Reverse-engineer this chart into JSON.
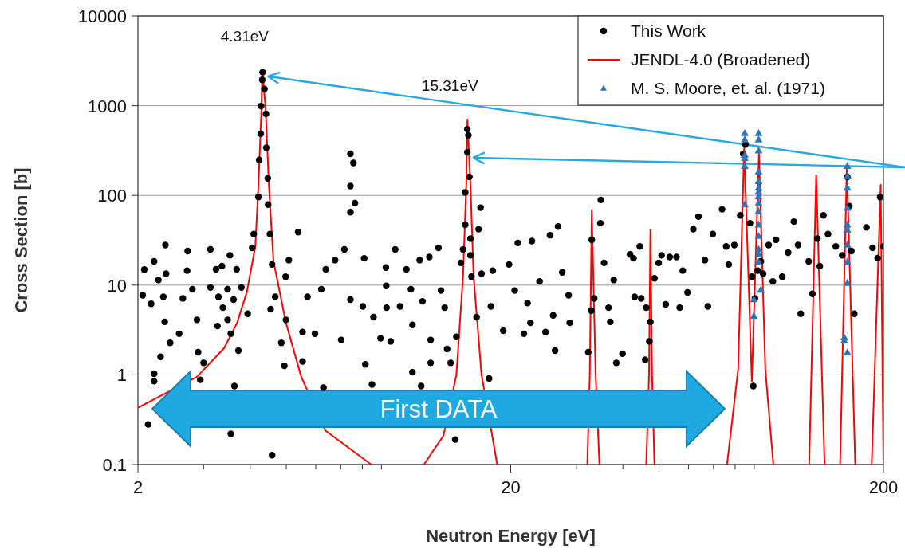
{
  "chart_data": {
    "type": "scatter",
    "xlabel": "Neutron Energy [eV]",
    "ylabel": "Cross Section [b]",
    "log": "xy",
    "grid": "y",
    "legend": "top right",
    "xlim": [
      2,
      200
    ],
    "ylim": [
      0.1,
      10000
    ],
    "xticks": [
      2,
      {
        "value": 3,
        "label": null
      },
      {
        "value": 4,
        "label": null
      },
      {
        "value": 5,
        "label": null
      },
      {
        "value": 6,
        "label": null
      },
      {
        "value": 7,
        "label": null
      },
      {
        "value": 8,
        "label": null
      },
      {
        "value": 9,
        "label": null
      },
      20,
      {
        "value": 30,
        "label": null
      },
      {
        "value": 40,
        "label": null
      },
      {
        "value": 50,
        "label": null
      },
      {
        "value": 60,
        "label": null
      },
      {
        "value": 70,
        "label": null
      },
      {
        "value": 80,
        "label": null
      },
      {
        "value": 90,
        "label": null
      },
      200
    ],
    "yticks": [
      0.1,
      1,
      10,
      100,
      1000,
      10000
    ],
    "annotations": [
      {
        "text": "4.31eV",
        "x": 4.31,
        "y": 2500
      },
      {
        "text": "15.31eV",
        "x": 15.31,
        "y": 700
      },
      "First DATA"
    ],
    "series": [
      {
        "name": "This Work",
        "marker": "circle",
        "color": "#000000",
        "x": [
          2.06,
          2.08,
          2.17,
          2.21,
          2.27,
          2.3,
          2.34,
          2.37,
          2.38,
          2.36,
          2.44,
          2.21,
          2.21,
          2.13,
          2.58,
          2.64,
          2.72,
          2.71,
          2.8,
          2.88,
          2.9,
          3.0,
          2.94,
          3.13,
          3.13,
          3.24,
          3.27,
          3.29,
          3.36,
          3.38,
          3.48,
          3.48,
          3.53,
          3.55,
          3.61,
          3.68,
          3.72,
          3.79,
          3.63,
          3.55,
          3.94,
          4.05,
          4.09,
          4.21,
          4.23,
          4.27,
          4.28,
          4.31,
          4.32,
          4.37,
          4.41,
          4.42,
          4.46,
          4.47,
          4.52,
          4.58,
          4.67,
          4.54,
          4.58,
          4.85,
          4.98,
          4.99,
          4.94,
          5.08,
          5.38,
          5.53,
          5.53,
          5.7,
          5.97,
          6.21,
          6.29,
          6.38,
          6.76,
          7.02,
          7.16,
          7.43,
          7.43,
          7.57,
          7.43,
          7.64,
          7.43,
          8.09,
          8.02,
          8.15,
          8.49,
          8.57,
          8.95,
          9.25,
          9.29,
          9.27,
          9.53,
          9.8,
          10.1,
          10.5,
          10.8,
          10.9,
          10.9,
          11.4,
          11.5,
          11.6,
          12.1,
          12.2,
          12.2,
          12.8,
          13.0,
          13.3,
          13.5,
          13.8,
          14.2,
          14.3,
          14.7,
          14.9,
          15.1,
          15.1,
          15.5,
          15.3,
          15.4,
          15.3,
          15.6,
          15.6,
          15.7,
          16.2,
          16.6,
          16.4,
          16.7,
          17.5,
          17.7,
          17.9,
          19.1,
          19.8,
          20.5,
          20.9,
          21.7,
          22.2,
          22.6,
          22.8,
          23.9,
          24.8,
          25.5,
          26.0,
          26.3,
          26.8,
          27.5,
          28.6,
          28.8,
          32.3,
          32.9,
          33.0,
          33.5,
          34.9,
          34.8,
          35.6,
          36.6,
          37.0,
          37.8,
          38.4,
          39.9,
          41.8,
          43.0,
          42.7,
          44.4,
          44.8,
          46.2,
          47.4,
          47.1,
          45.9,
          48.6,
          49.9,
          50.8,
          52.1,
          53.4,
          55.7,
          56.8,
          57.9,
          59.6,
          61.8,
          63.8,
          66.4,
          67.6,
          69.7,
          73.8,
          75.7,
          76.9,
          79.6,
          82.6,
          84.1,
          85.3,
          87.7,
          88.7,
          89.5,
          90.4,
          92.0,
          93.8,
          95.1,
          98.4,
          101,
          103,
          107,
          111,
          115,
          118,
          120,
          126,
          129,
          133,
          135,
          138,
          142,
          149,
          155,
          160,
          162,
          164,
          167,
          180,
          187,
          193,
          196,
          200
        ],
        "values": [
          7.7,
          14.9,
          6.2,
          18.4,
          11.4,
          1.59,
          7.4,
          28,
          13.4,
          3.9,
          2.27,
          1.03,
          0.85,
          0.28,
          2.87,
          7.1,
          24,
          14.5,
          9.0,
          4.1,
          1.79,
          1.36,
          0.88,
          25,
          9.4,
          15,
          3.5,
          7.4,
          16.3,
          5.6,
          9.0,
          4.1,
          21.5,
          2.87,
          6.9,
          15,
          1.86,
          9.4,
          0.75,
          0.22,
          4.8,
          26,
          37,
          96,
          248,
          486,
          990,
          1940,
          2360,
          1530,
          810,
          340,
          155,
          79,
          37,
          17,
          7.4,
          5.4,
          0.127,
          2.27,
          12.4,
          4.1,
          1.26,
          19,
          39,
          3.0,
          1.41,
          7.4,
          2.87,
          9.0,
          0.72,
          15,
          19,
          2.45,
          25,
          6.9,
          291,
          230,
          127,
          82,
          65,
          19.9,
          5.8,
          1.31,
          0.78,
          4.4,
          2.55,
          15.7,
          5.6,
          9.8,
          2.36,
          25,
          5.8,
          15,
          9.0,
          3.6,
          1.07,
          19,
          0.75,
          6.6,
          20.6,
          1.36,
          2.45,
          26,
          8.7,
          5.6,
          1.94,
          1.36,
          0.19,
          2.65,
          17.7,
          25,
          47,
          108,
          161,
          303,
          468,
          547,
          33,
          21.5,
          12.4,
          4.4,
          73,
          42,
          13.4,
          0.91,
          5.8,
          14.5,
          3.1,
          17,
          8.7,
          29.5,
          2.87,
          6.3,
          3.8,
          31,
          11,
          3.0,
          36,
          4.6,
          1.86,
          45,
          13.9,
          7.7,
          3.8,
          1.79,
          5.2,
          32,
          7.1,
          89,
          49,
          17.7,
          5.6,
          3.9,
          11.4,
          1.36,
          1.72,
          22,
          7.4,
          19.9,
          27,
          7.1,
          5.6,
          3.9,
          2.36,
          1.47,
          11.9,
          17.7,
          21.5,
          6.1,
          20.6,
          20.6,
          5.6,
          14.5,
          8.3,
          42,
          58,
          19,
          5.8,
          37,
          70,
          27,
          17,
          28,
          60,
          291,
          369,
          49,
          12.4,
          0.75,
          7.1,
          14.5,
          18.4,
          13.4,
          28,
          11,
          32,
          12.4,
          23,
          51,
          28,
          4.8,
          18.4,
          8.0,
          33,
          16.3,
          60,
          37,
          27,
          21.5,
          161,
          76,
          24,
          4.8,
          44,
          26,
          20,
          96,
          27
        ]
      },
      {
        "name": "JENDL-4.0 (Broadened)",
        "type": "line",
        "line_style": "solid",
        "color": "#ff0000",
        "x": [
          2,
          2.88,
          3.41,
          3.69,
          3.92,
          4.13,
          4.21,
          4.29,
          4.31,
          4.4,
          4.49,
          4.62,
          4.99,
          5.49,
          6.36,
          8.45,
          10,
          11.7,
          13.2,
          14.3,
          14.9,
          15.2,
          15.31,
          15.6,
          15.9,
          16.7,
          18.4,
          25,
          32.1,
          32.6,
          33.0,
          33.8,
          34.6,
          40,
          46.2,
          47.0,
          47.4,
          47.9,
          48.6,
          60,
          76.1,
          81.5,
          84.6,
          88.7,
          92.7,
          96.4,
          101.3,
          115,
          126.4,
          132,
          139,
          145,
          153,
          159.5,
          168,
          180,
          186,
          196.6,
          200
        ],
        "values": [
          0.43,
          0.95,
          2.0,
          3.8,
          8.4,
          27,
          131,
          944,
          2500,
          944,
          131,
          18.5,
          3.8,
          0.94,
          0.24,
          0.1,
          null,
          0.1,
          0.21,
          1.0,
          12.6,
          131,
          700,
          131,
          12.6,
          1.0,
          0.1,
          null,
          0.1,
          1,
          68,
          1,
          0.1,
          null,
          0.1,
          1,
          41,
          1,
          0.1,
          null,
          0.1,
          1.15,
          339,
          0.85,
          293,
          1.15,
          0.1,
          null,
          0.1,
          168,
          0.1,
          null,
          0.1,
          211,
          0.1,
          null,
          0.1,
          131,
          0.1
        ]
      },
      {
        "name": "M. S. Moore, et. al. (1971)",
        "marker": "triangle",
        "color": "#2e75b6",
        "x": [
          84.9,
          84.9,
          84.9,
          84.9,
          84.9,
          84.9,
          92.5,
          92.5,
          92.5,
          92.5,
          92.5,
          92.5,
          92.5,
          92.5,
          92.5,
          92.5,
          92.5,
          92.5,
          92.5,
          92.5,
          92.5,
          93.8,
          89.8,
          89.8,
          160,
          160,
          160,
          160,
          160,
          160,
          160,
          160,
          160,
          160,
          157,
          157
        ],
        "values": [
          490,
          416,
          281,
          259,
          211,
          79,
          490,
          416,
          315,
          183,
          143,
          121,
          109,
          97,
          82,
          66,
          47,
          35,
          25,
          22,
          18,
          8.8,
          6.9,
          4.5,
          211,
          162,
          121,
          72,
          47,
          41,
          28,
          18,
          10.5,
          1.76,
          2.6,
          2.4
        ]
      }
    ]
  }
}
